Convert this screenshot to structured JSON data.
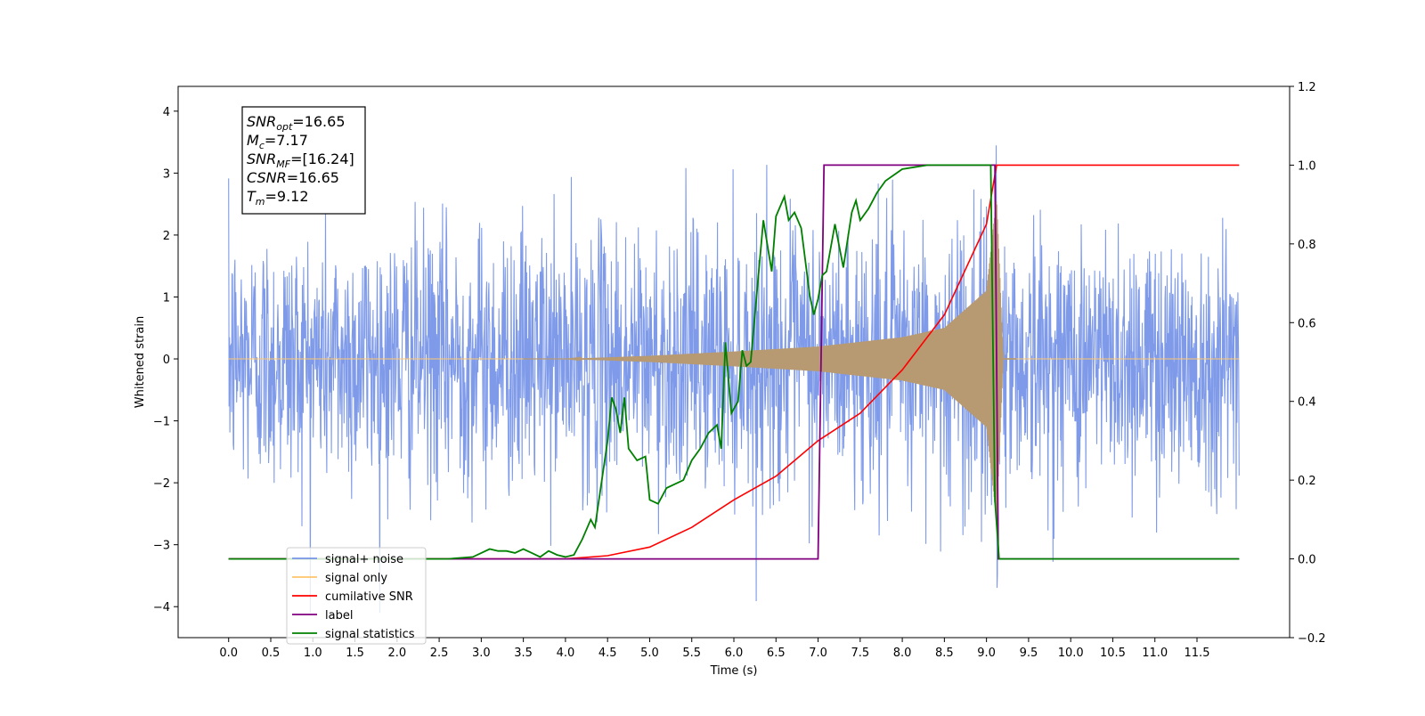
{
  "chart_data": {
    "type": "line",
    "xlabel": "Time (s)",
    "ylabel": "Whitened strain",
    "xlim": [
      -0.6,
      12.6
    ],
    "ylim_left": [
      -4.5,
      4.4
    ],
    "ylim_right": [
      -0.2,
      1.2
    ],
    "x_ticks": [
      "0.0",
      "0.5",
      "1.0",
      "1.5",
      "2.0",
      "2.5",
      "3.0",
      "3.5",
      "4.0",
      "4.5",
      "5.0",
      "5.5",
      "6.0",
      "6.5",
      "7.0",
      "7.5",
      "8.0",
      "8.5",
      "9.0",
      "9.5",
      "10.0",
      "10.5",
      "11.0",
      "11.5"
    ],
    "y_ticks_left": [
      "4",
      "3",
      "2",
      "1",
      "0",
      "−1",
      "−2",
      "−3",
      "−4"
    ],
    "y_ticks_right": [
      "1.2",
      "1.0",
      "0.8",
      "0.6",
      "0.4",
      "0.2",
      "0.0",
      "−0.2"
    ],
    "legend_position": "lower-left",
    "legend": [
      {
        "label": "signal+ noise",
        "color": "#7795e8"
      },
      {
        "label": "signal only",
        "color": "#ffc56b"
      },
      {
        "label": "cumilative SNR",
        "color": "#ff0000"
      },
      {
        "label": "label",
        "color": "#800080"
      },
      {
        "label": "signal statistics",
        "color": "#008000"
      }
    ],
    "annotation": {
      "lines": [
        {
          "base": "SNR",
          "sub": "opt",
          "rest": "=16.65"
        },
        {
          "base": "M",
          "sub": "c",
          "rest": "=7.17"
        },
        {
          "base": "SNR",
          "sub": "MF",
          "rest": "=[16.24]"
        },
        {
          "base": "CSNR",
          "sub": "",
          "rest": "=16.65"
        },
        {
          "base": "T",
          "sub": "m",
          "rest": "=9.12"
        }
      ]
    },
    "series": [
      {
        "name": "signal+ noise",
        "axis": "left",
        "color": "#7795e8",
        "x_range": [
          0.0,
          12.0
        ],
        "typical_amplitude": 2.2,
        "peak_values": [
          4.05,
          -4.1
        ],
        "description_values": {
          "t_start": 0.0,
          "t_end": 12.0
        }
      },
      {
        "name": "signal only",
        "axis": "left",
        "color": "#ffc56b",
        "x_range": [
          0.0,
          12.0
        ],
        "merger_time": 9.12,
        "envelope": [
          [
            4.0,
            0.0
          ],
          [
            5.0,
            0.05
          ],
          [
            6.0,
            0.12
          ],
          [
            7.0,
            0.2
          ],
          [
            8.0,
            0.35
          ],
          [
            8.5,
            0.5
          ],
          [
            9.0,
            1.1
          ],
          [
            9.12,
            2.6
          ],
          [
            9.2,
            0.0
          ]
        ]
      },
      {
        "name": "cumilative SNR",
        "axis": "right",
        "color": "#ff0000",
        "points": [
          [
            0.0,
            0.0
          ],
          [
            3.0,
            0.0
          ],
          [
            4.0,
            0.0
          ],
          [
            4.5,
            0.008
          ],
          [
            5.0,
            0.03
          ],
          [
            5.5,
            0.08
          ],
          [
            6.0,
            0.15
          ],
          [
            6.5,
            0.21
          ],
          [
            7.0,
            0.3
          ],
          [
            7.5,
            0.37
          ],
          [
            8.0,
            0.48
          ],
          [
            8.5,
            0.62
          ],
          [
            9.0,
            0.85
          ],
          [
            9.12,
            1.0
          ],
          [
            12.0,
            1.0
          ]
        ]
      },
      {
        "name": "label",
        "axis": "right",
        "color": "#800080",
        "points": [
          [
            0.0,
            0.0
          ],
          [
            7.0,
            0.0
          ],
          [
            7.07,
            1.0
          ],
          [
            9.1,
            1.0
          ],
          [
            9.14,
            0.0
          ],
          [
            12.0,
            0.0
          ]
        ]
      },
      {
        "name": "signal statistics",
        "axis": "right",
        "color": "#008000",
        "points": [
          [
            0.0,
            0.0
          ],
          [
            2.6,
            0.0
          ],
          [
            2.9,
            0.005
          ],
          [
            3.0,
            0.015
          ],
          [
            3.1,
            0.025
          ],
          [
            3.2,
            0.02
          ],
          [
            3.3,
            0.02
          ],
          [
            3.4,
            0.015
          ],
          [
            3.5,
            0.025
          ],
          [
            3.6,
            0.015
          ],
          [
            3.7,
            0.005
          ],
          [
            3.8,
            0.02
          ],
          [
            3.9,
            0.01
          ],
          [
            4.0,
            0.005
          ],
          [
            4.1,
            0.01
          ],
          [
            4.2,
            0.05
          ],
          [
            4.3,
            0.1
          ],
          [
            4.35,
            0.08
          ],
          [
            4.5,
            0.3
          ],
          [
            4.55,
            0.41
          ],
          [
            4.6,
            0.38
          ],
          [
            4.65,
            0.32
          ],
          [
            4.7,
            0.41
          ],
          [
            4.75,
            0.28
          ],
          [
            4.85,
            0.25
          ],
          [
            4.95,
            0.26
          ],
          [
            5.0,
            0.15
          ],
          [
            5.1,
            0.14
          ],
          [
            5.2,
            0.18
          ],
          [
            5.3,
            0.19
          ],
          [
            5.4,
            0.2
          ],
          [
            5.5,
            0.25
          ],
          [
            5.6,
            0.28
          ],
          [
            5.7,
            0.32
          ],
          [
            5.8,
            0.34
          ],
          [
            5.85,
            0.28
          ],
          [
            5.9,
            0.55
          ],
          [
            5.97,
            0.37
          ],
          [
            6.05,
            0.4
          ],
          [
            6.1,
            0.53
          ],
          [
            6.15,
            0.49
          ],
          [
            6.2,
            0.5
          ],
          [
            6.35,
            0.86
          ],
          [
            6.45,
            0.73
          ],
          [
            6.5,
            0.87
          ],
          [
            6.6,
            0.92
          ],
          [
            6.65,
            0.86
          ],
          [
            6.72,
            0.88
          ],
          [
            6.8,
            0.84
          ],
          [
            6.9,
            0.67
          ],
          [
            6.95,
            0.62
          ],
          [
            7.0,
            0.66
          ],
          [
            7.05,
            0.72
          ],
          [
            7.1,
            0.73
          ],
          [
            7.2,
            0.85
          ],
          [
            7.3,
            0.74
          ],
          [
            7.4,
            0.88
          ],
          [
            7.45,
            0.91
          ],
          [
            7.5,
            0.86
          ],
          [
            7.6,
            0.89
          ],
          [
            7.7,
            0.93
          ],
          [
            7.8,
            0.96
          ],
          [
            8.0,
            0.99
          ],
          [
            8.3,
            1.0
          ],
          [
            9.05,
            1.0
          ],
          [
            9.1,
            0.15
          ],
          [
            9.15,
            0.0
          ],
          [
            12.0,
            0.0
          ]
        ]
      }
    ]
  }
}
